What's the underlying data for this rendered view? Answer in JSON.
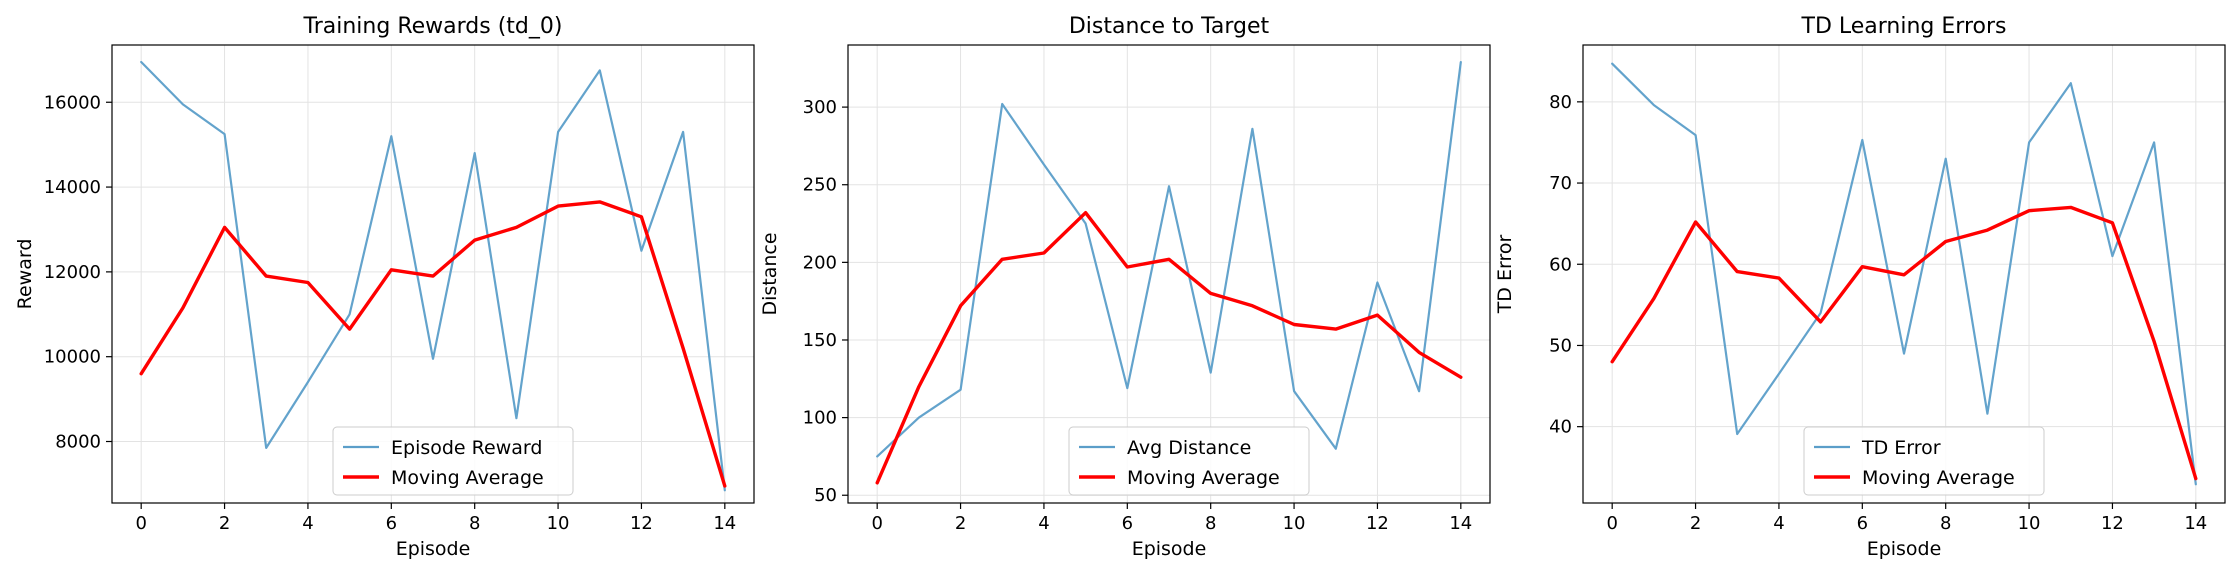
{
  "chart_data": [
    {
      "type": "line",
      "title": "Training Rewards (td_0)",
      "xlabel": "Episode",
      "ylabel": "Reward",
      "xlim": [
        -0.7,
        14.7
      ],
      "ylim": [
        6550,
        17350
      ],
      "xticks": [
        0,
        2,
        4,
        6,
        8,
        10,
        12,
        14
      ],
      "yticks": [
        8000,
        10000,
        12000,
        14000,
        16000
      ],
      "grid": true,
      "legend_position": "bottom-center",
      "series": [
        {
          "name": "Episode Reward",
          "color": "#5b9ec9",
          "x": [
            0,
            1,
            2,
            3,
            4,
            5,
            6,
            7,
            8,
            9,
            10,
            11,
            12,
            13,
            14
          ],
          "values": [
            16950,
            15950,
            15250,
            7850,
            9400,
            11000,
            15200,
            9950,
            14800,
            8550,
            15300,
            16750,
            12500,
            15300,
            6850
          ]
        },
        {
          "name": "Moving Average",
          "color": "#ff0000",
          "x": [
            0,
            1,
            2,
            3,
            4,
            5,
            6,
            7,
            8,
            9,
            10,
            11,
            12,
            13,
            14
          ],
          "values": [
            9600,
            11150,
            13050,
            11900,
            11750,
            10650,
            12050,
            11900,
            12750,
            13050,
            13550,
            13650,
            13300,
            10200,
            6950
          ]
        }
      ]
    },
    {
      "type": "line",
      "title": "Distance to Target",
      "xlabel": "Episode",
      "ylabel": "Distance",
      "xlim": [
        -0.7,
        14.7
      ],
      "ylim": [
        45,
        340
      ],
      "xticks": [
        0,
        2,
        4,
        6,
        8,
        10,
        12,
        14
      ],
      "yticks": [
        50,
        100,
        150,
        200,
        250,
        300
      ],
      "grid": true,
      "legend_position": "bottom-center",
      "series": [
        {
          "name": "Avg Distance",
          "color": "#5b9ec9",
          "x": [
            0,
            1,
            2,
            3,
            4,
            5,
            6,
            7,
            8,
            9,
            10,
            11,
            12,
            13,
            14
          ],
          "values": [
            75,
            100,
            118,
            302,
            263,
            225,
            119,
            249,
            129,
            286,
            117,
            80,
            187,
            117,
            329
          ]
        },
        {
          "name": "Moving Average",
          "color": "#ff0000",
          "x": [
            0,
            1,
            2,
            3,
            4,
            5,
            6,
            7,
            8,
            9,
            10,
            11,
            12,
            13,
            14
          ],
          "values": [
            58,
            120,
            172,
            202,
            206,
            232,
            197,
            202,
            180,
            172,
            160,
            157,
            166,
            142,
            126
          ]
        }
      ]
    },
    {
      "type": "line",
      "title": "TD Learning Errors",
      "xlabel": "Episode",
      "ylabel": "TD Error",
      "xlim": [
        -0.7,
        14.7
      ],
      "ylim": [
        30.6,
        87
      ],
      "xticks": [
        0,
        2,
        4,
        6,
        8,
        10,
        12,
        14
      ],
      "yticks": [
        40,
        50,
        60,
        70,
        80
      ],
      "grid": true,
      "legend_position": "bottom-center",
      "series": [
        {
          "name": "TD Error",
          "color": "#5b9ec9",
          "x": [
            0,
            1,
            2,
            3,
            4,
            5,
            6,
            7,
            8,
            9,
            10,
            11,
            12,
            13,
            14
          ],
          "values": [
            84.7,
            79.6,
            75.9,
            39.1,
            46.5,
            54,
            75.3,
            49,
            73,
            41.6,
            75,
            82.3,
            61,
            75,
            32.9
          ]
        },
        {
          "name": "Moving Average",
          "color": "#ff0000",
          "x": [
            0,
            1,
            2,
            3,
            4,
            5,
            6,
            7,
            8,
            9,
            10,
            11,
            12,
            13,
            14
          ],
          "values": [
            48,
            55.8,
            65.2,
            59.1,
            58.3,
            52.9,
            59.7,
            58.7,
            62.8,
            64.2,
            66.6,
            67,
            65.1,
            50.5,
            33.6
          ]
        }
      ]
    }
  ]
}
